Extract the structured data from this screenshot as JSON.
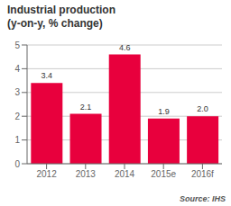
{
  "chart_data": {
    "type": "bar",
    "title": "Industrial production",
    "subtitle": "(y-on-y, % change)",
    "categories": [
      "2012",
      "2013",
      "2014",
      "2015e",
      "2016f"
    ],
    "values": [
      3.4,
      2.1,
      4.6,
      1.9,
      2.0
    ],
    "value_labels": [
      "3.4",
      "2.1",
      "4.6",
      "1.9",
      "2.0"
    ],
    "data_labels": true,
    "color": "#e8003d",
    "ylim": [
      0,
      5
    ],
    "yticks": [
      0,
      1,
      2,
      3,
      4,
      5
    ],
    "grid": true,
    "annotations": [
      "Source: IHS"
    ]
  }
}
